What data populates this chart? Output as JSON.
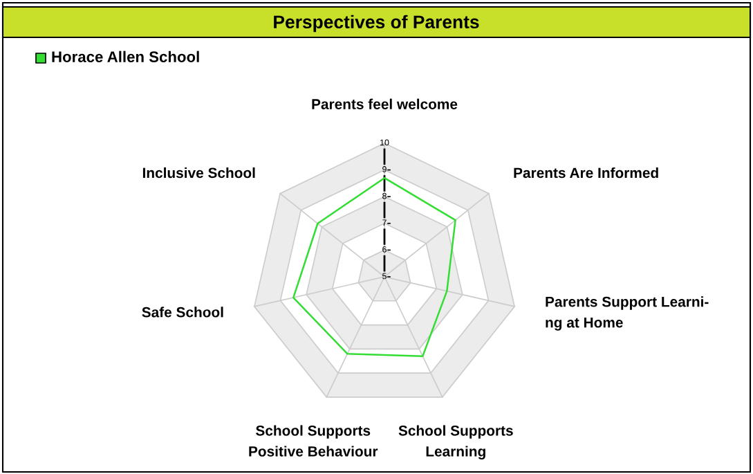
{
  "chart_data": {
    "type": "radar",
    "title": "Perspectives of Parents",
    "categories": [
      "Parents feel welcome",
      "Parents Are Informed",
      "Parents Support Learni-\nng at Home",
      "School Supports\nLearning",
      "School Supports\nPositive Behaviour",
      "Safe School",
      "Inclusive School"
    ],
    "series": [
      {
        "name": "Horace Allen School",
        "color": "#33dd33",
        "values": [
          8.7,
          8.4,
          7.4,
          8.3,
          8.2,
          8.5,
          8.2
        ]
      }
    ],
    "ylim": [
      5,
      10
    ],
    "yticks": [
      5,
      6,
      7,
      8,
      9,
      10
    ],
    "grid": true,
    "legend": "top left"
  }
}
